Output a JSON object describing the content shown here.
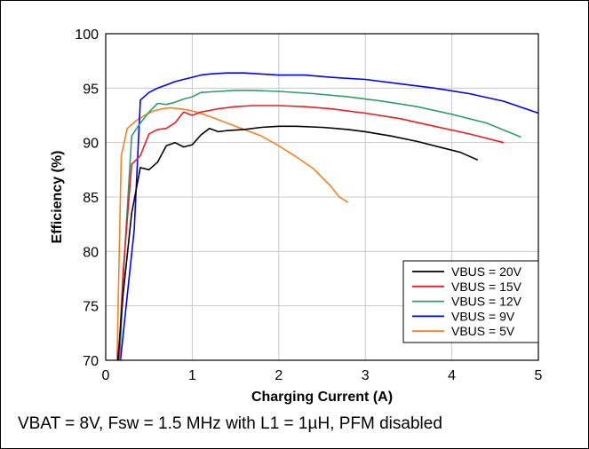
{
  "caption": "VBAT = 8V, Fsw = 1.5 MHz with L1 = 1µH, PFM disabled",
  "chart_data": {
    "type": "line",
    "title": "",
    "xlabel": "Charging Current (A)",
    "ylabel": "Efficiency (%)",
    "xlim": [
      0,
      5
    ],
    "ylim": [
      70,
      100
    ],
    "xticks": [
      "0",
      "1",
      "2",
      "3",
      "4",
      "5"
    ],
    "yticks": [
      "70",
      "75",
      "80",
      "85",
      "90",
      "95",
      "100"
    ],
    "grid": true,
    "legend_position": "bottom-right",
    "series": [
      {
        "name": "VBUS = 20V",
        "color": "#000000",
        "x": [
          0.14,
          0.2,
          0.3,
          0.4,
          0.5,
          0.6,
          0.7,
          0.8,
          0.9,
          1.0,
          1.1,
          1.2,
          1.3,
          1.4,
          1.6,
          1.8,
          2.0,
          2.2,
          2.5,
          2.8,
          3.0,
          3.3,
          3.6,
          3.9,
          4.1,
          4.3
        ],
        "y": [
          70,
          76,
          83.5,
          87.7,
          87.5,
          88.2,
          89.7,
          90.0,
          89.6,
          89.8,
          90.7,
          91.3,
          91.0,
          91.1,
          91.2,
          91.4,
          91.5,
          91.5,
          91.4,
          91.2,
          91.0,
          90.6,
          90.1,
          89.5,
          89.1,
          88.4
        ]
      },
      {
        "name": "VBUS = 15V",
        "color": "#ed1c24",
        "x": [
          0.15,
          0.2,
          0.3,
          0.4,
          0.5,
          0.6,
          0.7,
          0.8,
          0.9,
          1.0,
          1.1,
          1.3,
          1.5,
          1.7,
          2.0,
          2.3,
          2.6,
          3.0,
          3.4,
          3.8,
          4.2,
          4.6
        ],
        "y": [
          70,
          78,
          88.0,
          88.8,
          90.8,
          91.2,
          91.3,
          91.8,
          92.8,
          92.5,
          92.8,
          93.1,
          93.3,
          93.4,
          93.4,
          93.3,
          93.1,
          92.7,
          92.2,
          91.5,
          90.8,
          90.0
        ]
      },
      {
        "name": "VBUS = 12V",
        "color": "#2e9e6b",
        "x": [
          0.16,
          0.22,
          0.3,
          0.4,
          0.5,
          0.6,
          0.7,
          0.8,
          0.9,
          1.0,
          1.1,
          1.3,
          1.5,
          1.7,
          2.0,
          2.4,
          2.8,
          3.2,
          3.6,
          4.0,
          4.4,
          4.8
        ],
        "y": [
          70,
          80,
          90.6,
          91.8,
          92.8,
          93.6,
          93.5,
          93.7,
          94.0,
          94.2,
          94.6,
          94.7,
          94.8,
          94.8,
          94.7,
          94.5,
          94.2,
          93.8,
          93.3,
          92.6,
          91.8,
          90.5
        ]
      },
      {
        "name": "VBUS = 9V",
        "color": "#0000ff",
        "x": [
          0.17,
          0.25,
          0.33,
          0.4,
          0.5,
          0.6,
          0.7,
          0.8,
          0.9,
          1.0,
          1.1,
          1.2,
          1.4,
          1.6,
          1.8,
          2.0,
          2.3,
          2.6,
          3.0,
          3.4,
          3.8,
          4.2,
          4.6,
          5.0
        ],
        "y": [
          70,
          76,
          82,
          93.9,
          94.6,
          95.0,
          95.3,
          95.6,
          95.8,
          96.0,
          96.2,
          96.3,
          96.4,
          96.4,
          96.3,
          96.2,
          96.2,
          96.0,
          95.8,
          95.4,
          95.0,
          94.5,
          93.8,
          92.7
        ]
      },
      {
        "name": "VBUS = 5V",
        "color": "#f7811e",
        "x": [
          0.13,
          0.18,
          0.25,
          0.35,
          0.45,
          0.55,
          0.65,
          0.75,
          0.85,
          0.95,
          1.05,
          1.2,
          1.4,
          1.6,
          1.8,
          2.0,
          2.2,
          2.4,
          2.6,
          2.7,
          2.8
        ],
        "y": [
          70,
          88.8,
          91.3,
          92.0,
          92.5,
          92.9,
          93.1,
          93.2,
          93.1,
          93.0,
          92.8,
          92.4,
          91.8,
          91.2,
          90.6,
          89.7,
          88.7,
          87.6,
          86.0,
          85.0,
          84.5
        ]
      }
    ]
  }
}
